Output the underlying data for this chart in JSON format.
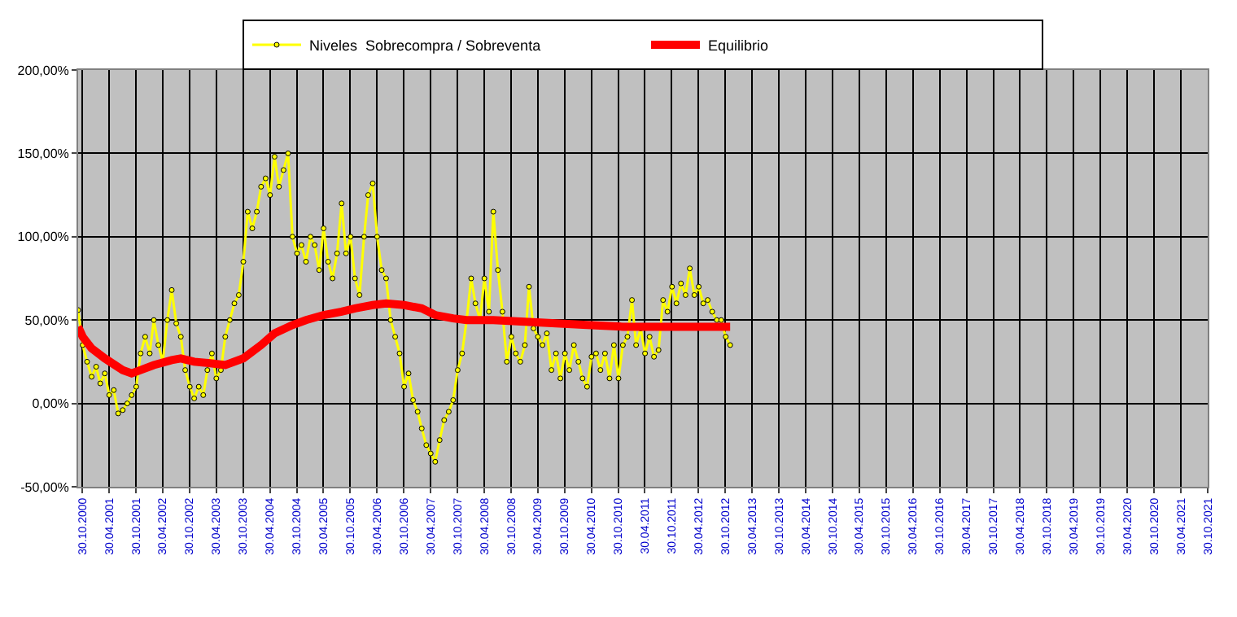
{
  "chart_data": {
    "type": "line",
    "series": [
      {
        "name": "Niveles  Sobrecompra / Sobreventa",
        "color": "#ffff00",
        "marker": "circle",
        "x": [
          "2000-10",
          "2000-11",
          "2000-12",
          "2001-01",
          "2001-02",
          "2001-03",
          "2001-04",
          "2001-05",
          "2001-06",
          "2001-07",
          "2001-08",
          "2001-09",
          "2001-10",
          "2001-11",
          "2001-12",
          "2002-01",
          "2002-02",
          "2002-03",
          "2002-04",
          "2002-05",
          "2002-06",
          "2002-07",
          "2002-08",
          "2002-09",
          "2002-10",
          "2002-11",
          "2002-12",
          "2003-01",
          "2003-02",
          "2003-03",
          "2003-04",
          "2003-05",
          "2003-06",
          "2003-07",
          "2003-08",
          "2003-09",
          "2003-10",
          "2003-11",
          "2003-12",
          "2004-01",
          "2004-02",
          "2004-03",
          "2004-04",
          "2004-05",
          "2004-06",
          "2004-07",
          "2004-08",
          "2004-09",
          "2004-10",
          "2004-11",
          "2004-12",
          "2005-01",
          "2005-02",
          "2005-03",
          "2005-04",
          "2005-05",
          "2005-06",
          "2005-07",
          "2005-08",
          "2005-09",
          "2005-10",
          "2005-11",
          "2005-12",
          "2006-01",
          "2006-02",
          "2006-03",
          "2006-04",
          "2006-05",
          "2006-06",
          "2006-07",
          "2006-08",
          "2006-09",
          "2006-10",
          "2006-11",
          "2006-12",
          "2007-01",
          "2007-02",
          "2007-03",
          "2007-04",
          "2007-05",
          "2007-06",
          "2007-07",
          "2007-08",
          "2007-09",
          "2007-10",
          "2007-11",
          "2007-12",
          "2008-01",
          "2008-02",
          "2008-03",
          "2008-04",
          "2008-05",
          "2008-06",
          "2008-07",
          "2008-08",
          "2008-09",
          "2008-10",
          "2008-11",
          "2008-12",
          "2009-01",
          "2009-02",
          "2009-03",
          "2009-04",
          "2009-05",
          "2009-06",
          "2009-07",
          "2009-08",
          "2009-09",
          "2009-10",
          "2009-11",
          "2009-12",
          "2010-01",
          "2010-02",
          "2010-03",
          "2010-04",
          "2010-05",
          "2010-06",
          "2010-07",
          "2010-08",
          "2010-09",
          "2010-10",
          "2010-11",
          "2010-12",
          "2011-01",
          "2011-02",
          "2011-03",
          "2011-04",
          "2011-05",
          "2011-06",
          "2011-07",
          "2011-08",
          "2011-09",
          "2011-10",
          "2011-11",
          "2011-12",
          "2012-01",
          "2012-02",
          "2012-03",
          "2012-04",
          "2012-05",
          "2012-06",
          "2012-07",
          "2012-08",
          "2012-09",
          "2012-10",
          "2012-11",
          "2012-12"
        ],
        "values": [
          56,
          35,
          25,
          16,
          22,
          12,
          18,
          5,
          8,
          -6,
          -4,
          0,
          5,
          10,
          30,
          40,
          30,
          50,
          35,
          25,
          50,
          68,
          48,
          40,
          20,
          10,
          3,
          10,
          5,
          20,
          30,
          15,
          20,
          40,
          50,
          60,
          65,
          85,
          115,
          105,
          115,
          130,
          135,
          125,
          148,
          130,
          140,
          150,
          100,
          90,
          95,
          85,
          100,
          95,
          80,
          105,
          85,
          75,
          90,
          120,
          90,
          100,
          75,
          65,
          100,
          125,
          132,
          100,
          80,
          75,
          50,
          40,
          30,
          10,
          18,
          2,
          -5,
          -15,
          -25,
          -30,
          -35,
          -22,
          -10,
          -5,
          2,
          20,
          30,
          50,
          75,
          60,
          50,
          75,
          55,
          115,
          80,
          55,
          25,
          40,
          30,
          25,
          35,
          70,
          45,
          40,
          35,
          42,
          20,
          30,
          15,
          30,
          20,
          35,
          25,
          15,
          10,
          28,
          30,
          20,
          30,
          15,
          35,
          15,
          35,
          40,
          62,
          35,
          45,
          30,
          40,
          28,
          32,
          62,
          55,
          70,
          60,
          72,
          65,
          81,
          65,
          70,
          60,
          62,
          55,
          50,
          50,
          40,
          35
        ]
      },
      {
        "name": "Equilibrio",
        "color": "#ff0000",
        "marker": "none",
        "x": [
          "2000-10",
          "2000-11",
          "2001-01",
          "2001-04",
          "2001-08",
          "2001-10",
          "2001-12",
          "2002-03",
          "2002-07",
          "2002-09",
          "2002-12",
          "2003-04",
          "2003-07",
          "2003-11",
          "2004-03",
          "2004-06",
          "2004-10",
          "2005-01",
          "2005-05",
          "2005-09",
          "2005-12",
          "2006-04",
          "2006-07",
          "2006-11",
          "2007-03",
          "2007-06",
          "2007-10",
          "2008-01",
          "2008-07",
          "2009-02",
          "2009-09",
          "2010-04",
          "2010-12",
          "2011-07",
          "2012-02",
          "2012-12"
        ],
        "values": [
          46,
          40,
          33,
          27,
          20,
          18,
          20,
          23,
          26,
          27,
          25,
          24,
          23,
          27,
          35,
          42,
          47,
          50,
          53,
          55,
          57,
          59,
          60,
          59,
          57,
          53,
          51,
          50,
          50,
          49,
          48,
          47,
          46,
          46,
          46,
          46
        ]
      }
    ],
    "xlim": [
      "2000-10-01",
      "2021-10-30"
    ],
    "xticks": [
      {
        "value": "2000-10-30",
        "label": "30.10.2000"
      },
      {
        "value": "2001-04-30",
        "label": "30.04.2001"
      },
      {
        "value": "2001-10-30",
        "label": "30.10.2001"
      },
      {
        "value": "2002-04-30",
        "label": "30.04.2002"
      },
      {
        "value": "2002-10-30",
        "label": "30.10.2002"
      },
      {
        "value": "2003-04-30",
        "label": "30.04.2003"
      },
      {
        "value": "2003-10-30",
        "label": "30.10.2003"
      },
      {
        "value": "2004-04-30",
        "label": "30.04.2004"
      },
      {
        "value": "2004-10-30",
        "label": "30.10.2004"
      },
      {
        "value": "2005-04-30",
        "label": "30.04.2005"
      },
      {
        "value": "2005-10-30",
        "label": "30.10.2005"
      },
      {
        "value": "2006-04-30",
        "label": "30.04.2006"
      },
      {
        "value": "2006-10-30",
        "label": "30.10.2006"
      },
      {
        "value": "2007-04-30",
        "label": "30.04.2007"
      },
      {
        "value": "2007-10-30",
        "label": "30.10.2007"
      },
      {
        "value": "2008-04-30",
        "label": "30.04.2008"
      },
      {
        "value": "2008-10-30",
        "label": "30.10.2008"
      },
      {
        "value": "2009-04-30",
        "label": "30.04.2009"
      },
      {
        "value": "2009-10-30",
        "label": "30.10.2009"
      },
      {
        "value": "2010-04-30",
        "label": "30.04.2010"
      },
      {
        "value": "2010-10-30",
        "label": "30.10.2010"
      },
      {
        "value": "2011-04-30",
        "label": "30.04.2011"
      },
      {
        "value": "2011-10-30",
        "label": "30.10.2011"
      },
      {
        "value": "2012-04-30",
        "label": "30.04.2012"
      },
      {
        "value": "2012-10-30",
        "label": "30.10.2012"
      },
      {
        "value": "2013-04-30",
        "label": "30.04.2013"
      },
      {
        "value": "2013-10-30",
        "label": "30.10.2013"
      },
      {
        "value": "2014-04-30",
        "label": "30.04.2014"
      },
      {
        "value": "2014-10-30",
        "label": "30.10.2014"
      },
      {
        "value": "2015-04-30",
        "label": "30.04.2015"
      },
      {
        "value": "2015-10-30",
        "label": "30.10.2015"
      },
      {
        "value": "2016-04-30",
        "label": "30.04.2016"
      },
      {
        "value": "2016-10-30",
        "label": "30.10.2016"
      },
      {
        "value": "2017-04-30",
        "label": "30.04.2017"
      },
      {
        "value": "2017-10-30",
        "label": "30.10.2017"
      },
      {
        "value": "2018-04-30",
        "label": "30.04.2018"
      },
      {
        "value": "2018-10-30",
        "label": "30.10.2018"
      },
      {
        "value": "2019-04-30",
        "label": "30.04.2019"
      },
      {
        "value": "2019-10-30",
        "label": "30.10.2019"
      },
      {
        "value": "2020-04-30",
        "label": "30.04.2020"
      },
      {
        "value": "2020-10-30",
        "label": "30.10.2020"
      },
      {
        "value": "2021-04-30",
        "label": "30.04.2021"
      },
      {
        "value": "2021-10-30",
        "label": "30.10.2021"
      }
    ],
    "ylim": [
      -50,
      200
    ],
    "yticks": [
      {
        "value": -50,
        "label": "-50,00%"
      },
      {
        "value": 0,
        "label": "0,00%"
      },
      {
        "value": 50,
        "label": "50,00%"
      },
      {
        "value": 100,
        "label": "100,00%"
      },
      {
        "value": 150,
        "label": "150,00%"
      },
      {
        "value": 200,
        "label": "200,00%"
      }
    ],
    "grid": true,
    "legend": "top",
    "line_style": "solid"
  }
}
